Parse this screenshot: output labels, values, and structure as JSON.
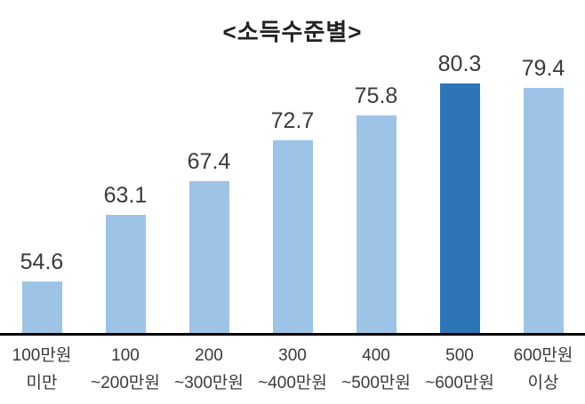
{
  "chart_data": {
    "type": "bar",
    "title": "<소득수준별>",
    "categories": [
      [
        "100만원",
        "미만"
      ],
      [
        "100",
        "~200만원"
      ],
      [
        "200",
        "~300만원"
      ],
      [
        "300",
        "~400만원"
      ],
      [
        "400",
        "~500만원"
      ],
      [
        "500",
        "~600만원"
      ],
      [
        "600만원",
        "이상"
      ]
    ],
    "values": [
      54.6,
      63.1,
      67.4,
      72.7,
      75.8,
      80.3,
      79.4
    ],
    "highlight_index": 5,
    "ylim": [
      48,
      84
    ],
    "grid": false,
    "legend": "none",
    "colors": {
      "bar": "#9DC3E6",
      "highlight": "#2E75B6",
      "axis": "#000000",
      "text": "#3a3a3a"
    }
  }
}
